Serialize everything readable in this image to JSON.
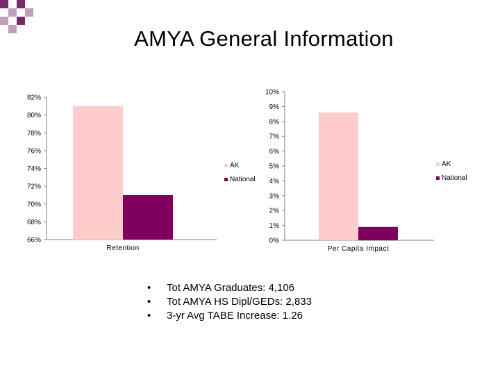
{
  "slide": {
    "title": "AMYA General Information",
    "bullets": [
      "Tot AMYA Graduates:  4,106",
      "Tot AMYA HS Dipl/GEDs:  2,833",
      "3-yr Avg TABE Increase:  1.26"
    ],
    "bullet_glyph": "•"
  },
  "colors": {
    "ak": "#FFCCCC",
    "national": "#800060",
    "corner_a": "#7A2A6B",
    "corner_b": "#BFA0B8"
  },
  "chart_data": [
    {
      "type": "bar",
      "categories": [
        "Retention"
      ],
      "series": [
        {
          "name": "AK",
          "values": [
            81
          ]
        },
        {
          "name": "National",
          "values": [
            71
          ]
        }
      ],
      "ylim": [
        66,
        82
      ],
      "yticks": [
        66,
        68,
        70,
        72,
        74,
        76,
        78,
        80,
        82
      ],
      "tick_labels": [
        "66%",
        "68%",
        "70%",
        "72%",
        "74%",
        "76%",
        "78%",
        "80%",
        "82%"
      ],
      "legend": "right"
    },
    {
      "type": "bar",
      "categories": [
        "Per Capita Impact"
      ],
      "series": [
        {
          "name": "AK",
          "values": [
            8.6
          ]
        },
        {
          "name": "National",
          "values": [
            0.9
          ]
        }
      ],
      "ylim": [
        0,
        10
      ],
      "yticks": [
        0,
        1,
        2,
        3,
        4,
        5,
        6,
        7,
        8,
        9,
        10
      ],
      "tick_labels": [
        "0%",
        "1%",
        "2%",
        "3%",
        "4%",
        "5%",
        "6%",
        "7%",
        "8%",
        "9%",
        "10%"
      ],
      "legend": "right"
    }
  ]
}
